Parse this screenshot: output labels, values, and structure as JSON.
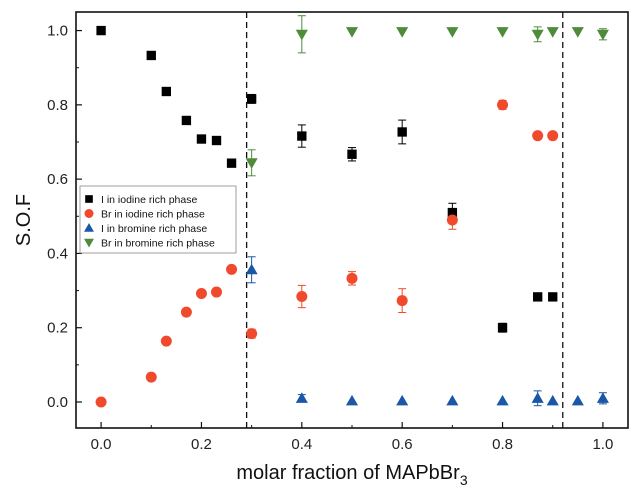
{
  "chart_data": {
    "type": "scatter",
    "xlabel": "molar fraction of MAPbBr",
    "xlabel_subscript": "3",
    "ylabel": "S.O.F",
    "xlim": [
      -0.05,
      1.05
    ],
    "ylim": [
      -0.07,
      1.05
    ],
    "x_ticks": [
      0.0,
      0.2,
      0.4,
      0.6,
      0.8,
      1.0
    ],
    "x_tick_labels": [
      "0.0",
      "0.2",
      "0.4",
      "0.6",
      "0.8",
      "1.0"
    ],
    "y_ticks": [
      0.0,
      0.2,
      0.4,
      0.6,
      0.8,
      1.0
    ],
    "y_tick_labels": [
      "0.0",
      "0.2",
      "0.4",
      "0.6",
      "0.8",
      "1.0"
    ],
    "vertical_dashed_lines": [
      0.29,
      0.92
    ],
    "legend_position": "center-left",
    "series": [
      {
        "name": "I   in iodine rich phase",
        "marker": "square",
        "color": "#000000",
        "points": [
          {
            "x": 0.0,
            "y": 1.0,
            "err": 0
          },
          {
            "x": 0.1,
            "y": 0.933,
            "err": 0
          },
          {
            "x": 0.13,
            "y": 0.836,
            "err": 0
          },
          {
            "x": 0.17,
            "y": 0.758,
            "err": 0
          },
          {
            "x": 0.2,
            "y": 0.708,
            "err": 0
          },
          {
            "x": 0.23,
            "y": 0.704,
            "err": 0
          },
          {
            "x": 0.26,
            "y": 0.643,
            "err": 0
          },
          {
            "x": 0.3,
            "y": 0.816,
            "err": 0.012
          },
          {
            "x": 0.4,
            "y": 0.716,
            "err": 0.03
          },
          {
            "x": 0.5,
            "y": 0.667,
            "err": 0.018
          },
          {
            "x": 0.6,
            "y": 0.727,
            "err": 0.032
          },
          {
            "x": 0.7,
            "y": 0.51,
            "err": 0.025
          },
          {
            "x": 0.8,
            "y": 0.2,
            "err": 0.012
          },
          {
            "x": 0.87,
            "y": 0.283,
            "err": 0
          },
          {
            "x": 0.9,
            "y": 0.283,
            "err": 0
          }
        ]
      },
      {
        "name": "Br in iodine rich phase",
        "marker": "circle",
        "color": "#f0492b",
        "points": [
          {
            "x": 0.0,
            "y": 0.0,
            "err": 0
          },
          {
            "x": 0.1,
            "y": 0.067,
            "err": 0
          },
          {
            "x": 0.13,
            "y": 0.164,
            "err": 0
          },
          {
            "x": 0.17,
            "y": 0.242,
            "err": 0
          },
          {
            "x": 0.2,
            "y": 0.292,
            "err": 0
          },
          {
            "x": 0.23,
            "y": 0.296,
            "err": 0
          },
          {
            "x": 0.26,
            "y": 0.357,
            "err": 0
          },
          {
            "x": 0.3,
            "y": 0.184,
            "err": 0.012
          },
          {
            "x": 0.4,
            "y": 0.284,
            "err": 0.03
          },
          {
            "x": 0.5,
            "y": 0.333,
            "err": 0.018
          },
          {
            "x": 0.6,
            "y": 0.273,
            "err": 0.032
          },
          {
            "x": 0.7,
            "y": 0.49,
            "err": 0.025
          },
          {
            "x": 0.8,
            "y": 0.8,
            "err": 0.012
          },
          {
            "x": 0.87,
            "y": 0.717,
            "err": 0
          },
          {
            "x": 0.9,
            "y": 0.717,
            "err": 0
          }
        ]
      },
      {
        "name": "I   in bromine rich phase",
        "marker": "triangle-up",
        "color": "#1a57a7",
        "points": [
          {
            "x": 0.3,
            "y": 0.356,
            "err": 0.035
          },
          {
            "x": 0.4,
            "y": 0.01,
            "err": 0.01
          },
          {
            "x": 0.5,
            "y": 0.003,
            "err": 0
          },
          {
            "x": 0.6,
            "y": 0.003,
            "err": 0
          },
          {
            "x": 0.7,
            "y": 0.003,
            "err": 0
          },
          {
            "x": 0.8,
            "y": 0.003,
            "err": 0
          },
          {
            "x": 0.87,
            "y": 0.01,
            "err": 0.02
          },
          {
            "x": 0.9,
            "y": 0.003,
            "err": 0
          },
          {
            "x": 0.95,
            "y": 0.003,
            "err": 0
          },
          {
            "x": 1.0,
            "y": 0.01,
            "err": 0.015
          }
        ]
      },
      {
        "name": "Br in bromine rich phase",
        "marker": "triangle-down",
        "color": "#4e8c3c",
        "points": [
          {
            "x": 0.3,
            "y": 0.644,
            "err": 0.035
          },
          {
            "x": 0.4,
            "y": 0.99,
            "err": 0.05
          },
          {
            "x": 0.5,
            "y": 0.997,
            "err": 0
          },
          {
            "x": 0.6,
            "y": 0.997,
            "err": 0
          },
          {
            "x": 0.7,
            "y": 0.997,
            "err": 0
          },
          {
            "x": 0.8,
            "y": 0.997,
            "err": 0
          },
          {
            "x": 0.87,
            "y": 0.99,
            "err": 0.02
          },
          {
            "x": 0.9,
            "y": 0.997,
            "err": 0
          },
          {
            "x": 0.95,
            "y": 0.997,
            "err": 0
          },
          {
            "x": 1.0,
            "y": 0.99,
            "err": 0.015
          }
        ]
      }
    ]
  }
}
